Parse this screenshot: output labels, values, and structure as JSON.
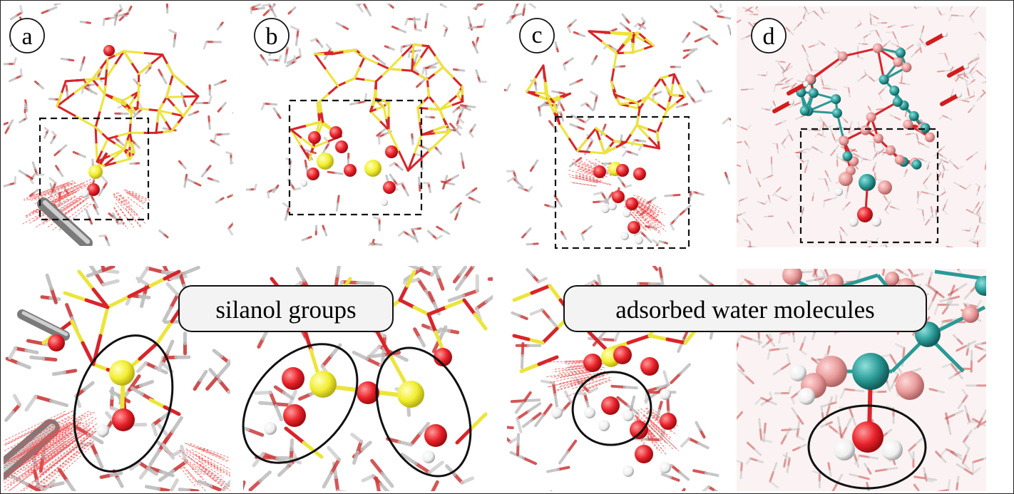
{
  "panel_labels": [
    "a",
    "b",
    "c",
    "d"
  ],
  "callouts": {
    "silanol": "silanol groups",
    "water": "adsorbed water molecules"
  },
  "colors": {
    "oxygen": "#e8212a",
    "silicon": "#f2ee2e",
    "hydrogen": "#f4f4f4",
    "metal": "#2a9a96",
    "bridging_atom": "#e89a9a",
    "bond_red": "#d8242a",
    "bond_yellow": "#ece53a",
    "water_bond": "#cc3a3a",
    "stick_grey": "#9a9a9a"
  }
}
